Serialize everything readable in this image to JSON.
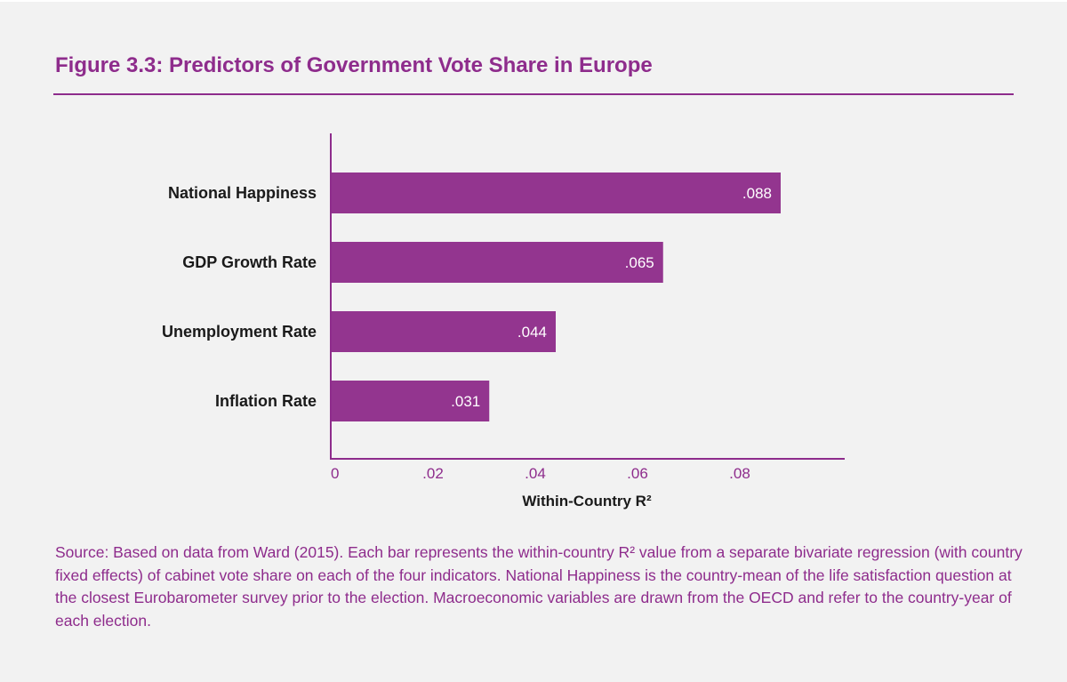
{
  "figure": {
    "title": "Figure 3.3: Predictors of Government Vote Share in Europe",
    "source_note": "Source: Based on data from Ward (2015). Each bar represents the within-country R² value from a separate bivariate regression (with country fixed effects) of cabinet vote share on each of the four indicators. National Happiness is the country-mean of the life satisfaction question at the closest Eurobarometer survey prior to the election. Macroeconomic variables are drawn from the OECD and refer to the country-year of each election."
  },
  "colors": {
    "accent": "#8e2c8c",
    "bar": "#93358f",
    "background": "#f2f2f2",
    "text": "#1a1a1a"
  },
  "chart_data": {
    "type": "bar",
    "orientation": "horizontal",
    "title": "Figure 3.3: Predictors of Government Vote Share in Europe",
    "categories": [
      "National Happiness",
      "GDP Growth Rate",
      "Unemployment Rate",
      "Inflation Rate"
    ],
    "values": [
      0.088,
      0.065,
      0.044,
      0.031
    ],
    "data_labels": [
      ".088",
      ".065",
      ".044",
      ".031"
    ],
    "xlabel": "Within-Country R²",
    "ylabel": "",
    "xlim": [
      0,
      0.1
    ],
    "x_ticks": [
      0,
      0.02,
      0.04,
      0.06,
      0.08
    ],
    "x_tick_labels": [
      "0",
      ".02",
      ".04",
      ".06",
      ".08"
    ],
    "grid": false,
    "legend": "none"
  }
}
